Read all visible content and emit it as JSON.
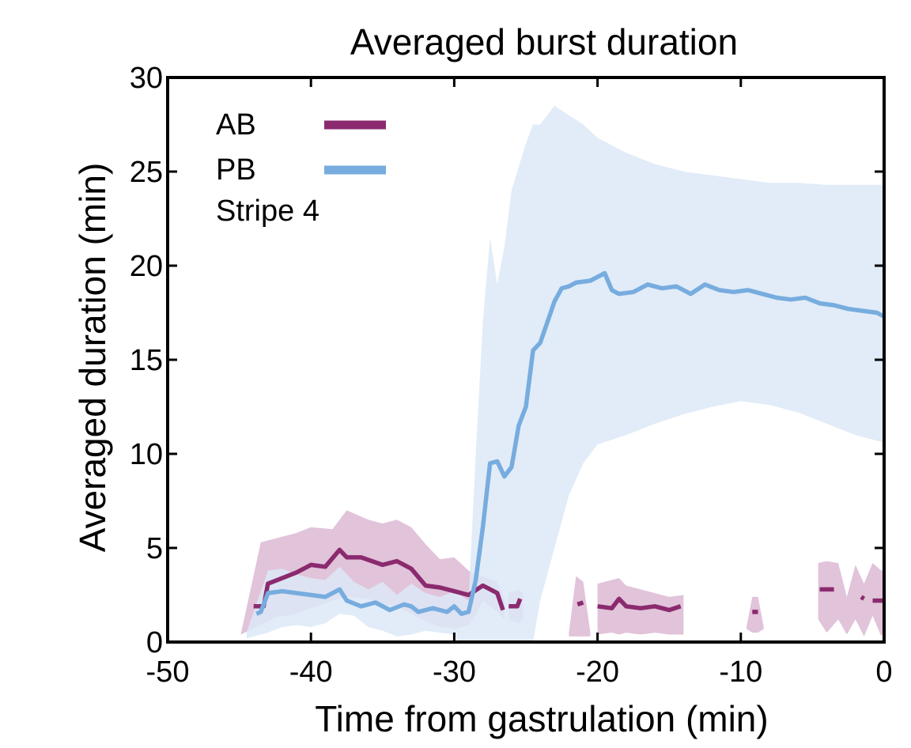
{
  "chart_data": {
    "type": "line",
    "title": "Averaged burst duration",
    "xlabel": "Time from gastrulation (min)",
    "ylabel": "Averaged duration (min)",
    "xlim": [
      -50,
      0
    ],
    "ylim": [
      0,
      30
    ],
    "xticks": [
      -50,
      -40,
      -30,
      -20,
      -10,
      0
    ],
    "xtick_labels": [
      "-50",
      "-40",
      "-30",
      "-20",
      "-10",
      "0"
    ],
    "yticks": [
      0,
      5,
      10,
      15,
      20,
      25,
      30
    ],
    "ytick_labels": [
      "0",
      "5",
      "10",
      "15",
      "20",
      "25",
      "30"
    ],
    "grid": false,
    "legend": {
      "placement": "top-left",
      "entries": [
        {
          "label": "AB",
          "series": "AB"
        },
        {
          "label": "PB",
          "series": "PB"
        }
      ],
      "note": "Stripe 4"
    },
    "series": [
      {
        "name": "AB",
        "color": "#8b2a6e",
        "band_color": "#dcb8d4",
        "segments": [
          [
            [
              -44.0,
              1.9
            ],
            [
              -43.3,
              1.9
            ],
            [
              -43.0,
              3.1
            ],
            [
              -42.0,
              3.4
            ],
            [
              -41.0,
              3.7
            ],
            [
              -40.0,
              4.1
            ],
            [
              -39.0,
              4.0
            ],
            [
              -38.0,
              4.9
            ],
            [
              -37.5,
              4.5
            ],
            [
              -36.5,
              4.5
            ],
            [
              -35.0,
              4.1
            ],
            [
              -34.0,
              4.3
            ],
            [
              -33.0,
              3.9
            ],
            [
              -32.0,
              3.0
            ],
            [
              -31.0,
              2.9
            ],
            [
              -30.0,
              2.7
            ],
            [
              -29.0,
              2.5
            ],
            [
              -28.0,
              3.0
            ],
            [
              -27.0,
              2.6
            ],
            [
              -26.6,
              1.7
            ]
          ],
          [
            [
              -26.2,
              1.9
            ],
            [
              -25.6,
              1.9
            ],
            [
              -25.4,
              2.3
            ]
          ],
          [
            [
              -21.4,
              2.0
            ],
            [
              -21.0,
              2.1
            ]
          ],
          [
            [
              -20.0,
              1.9
            ],
            [
              -19.0,
              1.8
            ],
            [
              -18.5,
              2.3
            ],
            [
              -18.0,
              1.9
            ],
            [
              -17.0,
              1.8
            ],
            [
              -16.0,
              1.9
            ],
            [
              -15.0,
              1.7
            ],
            [
              -14.2,
              1.9
            ]
          ],
          [
            [
              -9.2,
              1.6
            ],
            [
              -8.8,
              1.6
            ]
          ],
          [
            [
              -4.5,
              2.8
            ],
            [
              -3.5,
              2.8
            ]
          ],
          [
            [
              -1.6,
              2.4
            ],
            [
              -1.4,
              2.3
            ]
          ],
          [
            [
              -0.8,
              2.2
            ],
            [
              0.0,
              2.2
            ]
          ]
        ],
        "band": [
          {
            "x": [
              -44.9,
              -43.5,
              -42.5,
              -41.0,
              -40.0,
              -38.5,
              -37.5,
              -36.0,
              -35.0,
              -34.0,
              -33.0,
              -32.0,
              -31.0,
              -30.0,
              -29.0,
              -28.5,
              -28.0,
              -27.0,
              -26.5
            ],
            "upper": [
              0.4,
              5.3,
              5.5,
              5.8,
              6.1,
              6.0,
              7.0,
              6.5,
              6.3,
              6.5,
              6.1,
              5.2,
              4.4,
              4.5,
              3.8,
              3.6,
              3.5,
              3.2,
              2.3
            ],
            "lower": [
              0.4,
              0.9,
              1.3,
              1.5,
              1.8,
              2.2,
              2.4,
              2.3,
              2.0,
              1.9,
              1.5,
              1.1,
              0.8,
              0.7,
              0.9,
              1.4,
              2.2,
              1.6,
              1.2
            ]
          },
          {
            "x": [
              -26.2,
              -25.5,
              -25.2
            ],
            "upper": [
              2.6,
              2.8,
              2.6
            ],
            "lower": [
              1.2,
              1.0,
              1.2
            ]
          },
          {
            "x": [
              -22.0,
              -21.5,
              -21.0,
              -20.5
            ],
            "upper": [
              0.5,
              3.5,
              3.2,
              0.5
            ],
            "lower": [
              0.3,
              0.3,
              0.3,
              0.3
            ]
          },
          {
            "x": [
              -20.0,
              -19.0,
              -18.5,
              -18.0,
              -17.0,
              -16.0,
              -15.0,
              -14.0
            ],
            "upper": [
              3.1,
              3.3,
              3.4,
              3.0,
              2.8,
              2.6,
              2.4,
              2.5
            ],
            "lower": [
              0.4,
              0.5,
              0.4,
              0.5,
              0.4,
              0.5,
              0.4,
              0.4
            ]
          },
          {
            "x": [
              -9.6,
              -9.2,
              -8.8,
              -8.4
            ],
            "upper": [
              0.8,
              2.4,
              2.4,
              0.8
            ],
            "lower": [
              0.7,
              0.5,
              0.5,
              0.7
            ]
          },
          {
            "x": [
              -4.6,
              -4.0,
              -3.2,
              -2.6,
              -2.0,
              -1.4,
              -0.8,
              -0.2,
              0.0
            ],
            "upper": [
              4.2,
              4.3,
              4.2,
              2.4,
              4.1,
              3.1,
              4.2,
              3.8,
              3.8
            ],
            "lower": [
              1.2,
              0.5,
              1.2,
              0.4,
              1.2,
              0.3,
              1.4,
              0.3,
              0.6
            ]
          }
        ]
      },
      {
        "name": "PB",
        "color": "#77acde",
        "band_color": "#dce9f7",
        "segments": [
          [
            [
              -43.8,
              1.5
            ],
            [
              -43.5,
              1.6
            ],
            [
              -43.0,
              2.6
            ],
            [
              -42.0,
              2.7
            ],
            [
              -41.0,
              2.6
            ],
            [
              -40.0,
              2.5
            ],
            [
              -39.0,
              2.4
            ],
            [
              -38.0,
              2.8
            ],
            [
              -37.5,
              2.2
            ],
            [
              -36.5,
              1.9
            ],
            [
              -35.5,
              2.1
            ],
            [
              -34.5,
              1.7
            ],
            [
              -33.5,
              2.0
            ],
            [
              -33.0,
              1.9
            ],
            [
              -32.5,
              1.6
            ],
            [
              -31.5,
              1.8
            ],
            [
              -30.5,
              1.6
            ],
            [
              -30.0,
              1.9
            ],
            [
              -29.5,
              1.5
            ],
            [
              -29.0,
              1.6
            ],
            [
              -28.5,
              3.3
            ],
            [
              -28.0,
              6.1
            ],
            [
              -27.5,
              9.5
            ],
            [
              -27.0,
              9.6
            ],
            [
              -26.5,
              8.8
            ],
            [
              -26.0,
              9.3
            ],
            [
              -25.5,
              11.5
            ],
            [
              -25.0,
              12.5
            ],
            [
              -24.5,
              15.5
            ],
            [
              -24.0,
              15.9
            ],
            [
              -23.5,
              17.0
            ],
            [
              -23.0,
              18.1
            ],
            [
              -22.5,
              18.8
            ],
            [
              -22.0,
              18.9
            ],
            [
              -21.5,
              19.1
            ],
            [
              -20.5,
              19.2
            ],
            [
              -19.5,
              19.6
            ],
            [
              -19.0,
              18.7
            ],
            [
              -18.5,
              18.5
            ],
            [
              -17.5,
              18.6
            ],
            [
              -16.5,
              19.0
            ],
            [
              -15.5,
              18.8
            ],
            [
              -14.5,
              18.9
            ],
            [
              -13.5,
              18.5
            ],
            [
              -12.5,
              19.0
            ],
            [
              -11.5,
              18.7
            ],
            [
              -10.5,
              18.6
            ],
            [
              -9.5,
              18.7
            ],
            [
              -8.5,
              18.5
            ],
            [
              -7.5,
              18.3
            ],
            [
              -6.5,
              18.2
            ],
            [
              -5.5,
              18.3
            ],
            [
              -4.5,
              18.0
            ],
            [
              -3.5,
              17.9
            ],
            [
              -2.5,
              17.7
            ],
            [
              -1.5,
              17.6
            ],
            [
              -0.5,
              17.5
            ],
            [
              0.0,
              17.3
            ]
          ]
        ],
        "band": [
          {
            "x": [
              -44.5,
              -43.0,
              -42.0,
              -41.0,
              -40.0,
              -39.0,
              -38.0,
              -37.0,
              -36.0,
              -35.0,
              -34.0,
              -33.0,
              -32.0,
              -31.0,
              -30.0,
              -29.0,
              -28.5,
              -28.0,
              -27.5,
              -27.0,
              -26.5,
              -26.0,
              -25.0,
              -24.5,
              -24.0,
              -23.0,
              -22.0,
              -21.0,
              -20.0,
              -18.0,
              -16.0,
              -14.0,
              -12.0,
              -10.0,
              -8.0,
              -6.0,
              -4.0,
              -2.0,
              0.0
            ],
            "upper": [
              0.5,
              3.8,
              3.9,
              3.6,
              3.4,
              3.3,
              4.0,
              3.2,
              2.8,
              3.2,
              2.5,
              3.1,
              2.6,
              2.4,
              2.7,
              2.2,
              10.0,
              17.0,
              21.5,
              19.0,
              21.0,
              24.0,
              26.5,
              27.5,
              27.5,
              28.5,
              28.0,
              27.5,
              26.8,
              26.0,
              25.4,
              25.0,
              24.8,
              24.6,
              24.4,
              24.4,
              24.3,
              24.3,
              24.3
            ],
            "lower": [
              0.2,
              0.5,
              0.8,
              0.9,
              0.8,
              1.0,
              1.5,
              1.4,
              0.8,
              0.6,
              0.3,
              0.4,
              0.6,
              0.5,
              0.4,
              -1.0,
              -1.0,
              -1.0,
              -1.0,
              -1.0,
              -1.0,
              -1.0,
              -1.0,
              0.0,
              2.2,
              5.0,
              7.8,
              9.5,
              10.5,
              11.0,
              11.6,
              12.1,
              12.5,
              12.8,
              12.6,
              12.2,
              11.6,
              11.0,
              10.6
            ]
          }
        ]
      }
    ]
  }
}
